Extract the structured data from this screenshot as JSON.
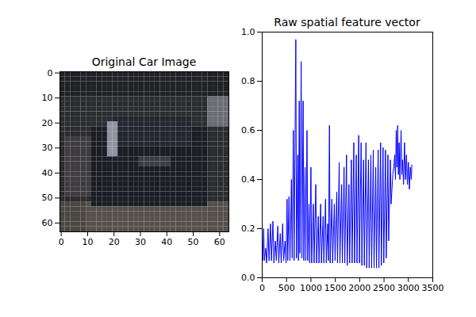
{
  "chart_data": [
    {
      "type": "image",
      "title": "Original Car Image",
      "xlim": [
        -0.5,
        63.5
      ],
      "ylim": [
        63.5,
        -0.5
      ],
      "xticks": [
        0,
        10,
        20,
        30,
        40,
        50,
        60
      ],
      "yticks": [
        0,
        10,
        20,
        30,
        40,
        50,
        60
      ]
    },
    {
      "type": "line",
      "title": "Raw spatial feature vector",
      "color": "#0000ff",
      "x": [
        0,
        10,
        30,
        45,
        70,
        90,
        120,
        140,
        170,
        190,
        220,
        240,
        270,
        290,
        320,
        340,
        370,
        390,
        420,
        440,
        470,
        490,
        510,
        525,
        550,
        570,
        600,
        615,
        640,
        655,
        690,
        705,
        730,
        745,
        760,
        775,
        800,
        815,
        840,
        855,
        880,
        895,
        920,
        935,
        960,
        975,
        1000,
        1015,
        1050,
        1065,
        1100,
        1115,
        1150,
        1165,
        1200,
        1215,
        1250,
        1265,
        1300,
        1315,
        1345,
        1360,
        1380,
        1395,
        1430,
        1445,
        1480,
        1495,
        1530,
        1545,
        1580,
        1595,
        1630,
        1645,
        1680,
        1695,
        1730,
        1745,
        1780,
        1795,
        1830,
        1845,
        1880,
        1895,
        1930,
        1945,
        1980,
        1995,
        2030,
        2045,
        2080,
        2095,
        2130,
        2145,
        2180,
        2195,
        2230,
        2245,
        2280,
        2295,
        2330,
        2345,
        2380,
        2395,
        2430,
        2445,
        2480,
        2495,
        2530,
        2545,
        2580,
        2595,
        2630,
        2645,
        2680,
        2700,
        2720,
        2735,
        2750,
        2765,
        2780,
        2795,
        2810,
        2825,
        2850,
        2865,
        2880,
        2900,
        2920,
        2940,
        2960,
        2980,
        3000,
        3020,
        3040,
        3060,
        3071
      ],
      "values": [
        0.15,
        0.07,
        0.2,
        0.07,
        0.12,
        0.06,
        0.2,
        0.07,
        0.22,
        0.07,
        0.23,
        0.06,
        0.15,
        0.07,
        0.21,
        0.06,
        0.18,
        0.06,
        0.22,
        0.07,
        0.15,
        0.06,
        0.32,
        0.07,
        0.33,
        0.07,
        0.4,
        0.08,
        0.6,
        0.07,
        0.97,
        0.08,
        0.5,
        0.07,
        0.72,
        0.1,
        0.88,
        0.08,
        0.72,
        0.07,
        0.45,
        0.07,
        0.6,
        0.07,
        0.3,
        0.06,
        0.45,
        0.06,
        0.3,
        0.06,
        0.38,
        0.06,
        0.25,
        0.06,
        0.3,
        0.06,
        0.25,
        0.06,
        0.32,
        0.06,
        0.22,
        0.07,
        0.62,
        0.06,
        0.32,
        0.06,
        0.3,
        0.07,
        0.35,
        0.06,
        0.47,
        0.06,
        0.38,
        0.06,
        0.45,
        0.06,
        0.5,
        0.05,
        0.38,
        0.06,
        0.48,
        0.06,
        0.55,
        0.06,
        0.5,
        0.06,
        0.58,
        0.06,
        0.55,
        0.05,
        0.48,
        0.05,
        0.55,
        0.04,
        0.48,
        0.04,
        0.5,
        0.04,
        0.52,
        0.04,
        0.45,
        0.04,
        0.52,
        0.04,
        0.55,
        0.05,
        0.53,
        0.06,
        0.52,
        0.08,
        0.5,
        0.15,
        0.48,
        0.3,
        0.42,
        0.45,
        0.5,
        0.4,
        0.6,
        0.45,
        0.62,
        0.42,
        0.55,
        0.4,
        0.6,
        0.42,
        0.48,
        0.38,
        0.55,
        0.4,
        0.5,
        0.38,
        0.47,
        0.36,
        0.45,
        0.4,
        0.46
      ],
      "xlim": [
        0,
        3500
      ],
      "ylim": [
        0,
        1
      ],
      "xticks": [
        0,
        500,
        1000,
        1500,
        2000,
        2500,
        3000,
        3500
      ],
      "yticks": [
        {
          "value": 0,
          "label": "0.0"
        },
        {
          "value": 0.2,
          "label": "0.2"
        },
        {
          "value": 0.4,
          "label": "0.4"
        },
        {
          "value": 0.6,
          "label": "0.6"
        },
        {
          "value": 0.8,
          "label": "0.8"
        },
        {
          "value": 1,
          "label": "1.0"
        }
      ]
    }
  ]
}
